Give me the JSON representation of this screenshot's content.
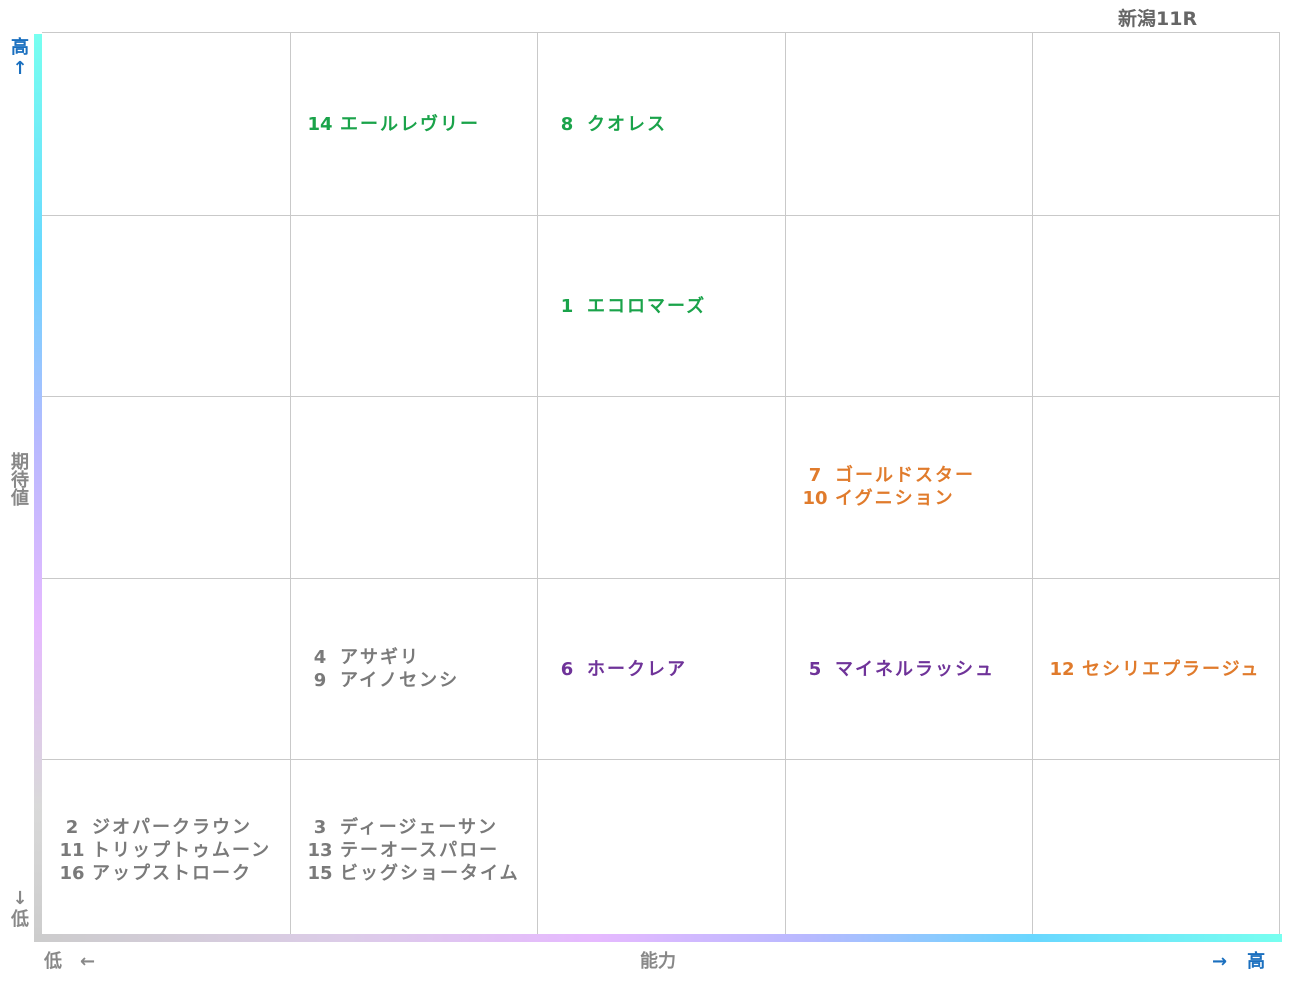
{
  "chart_data": {
    "type": "table",
    "title": "新潟11R",
    "y_axis": {
      "top": "高",
      "top_arrow": "↑",
      "label": "期待値",
      "bottom_arrow": "↓",
      "bottom": "低"
    },
    "x_axis": {
      "low": "低",
      "low_arrow": "←",
      "label": "能力",
      "high_arrow": "→",
      "high": "高"
    },
    "grid": {
      "columns": 5,
      "rows": 5
    },
    "colors": {
      "green": "#1aa34a",
      "orange": "#e07b2c",
      "purple": "#6f3399",
      "gray": "#7a7a7a",
      "axis_text": "#1a6fbf"
    },
    "cells": [
      {
        "row": 0,
        "col": 1,
        "color": "#1aa34a",
        "entries": [
          {
            "num": "14",
            "name": "エールレヴリー"
          }
        ]
      },
      {
        "row": 0,
        "col": 2,
        "color": "#1aa34a",
        "entries": [
          {
            "num": "8",
            "name": "クオレス"
          }
        ]
      },
      {
        "row": 1,
        "col": 2,
        "color": "#1aa34a",
        "entries": [
          {
            "num": "1",
            "name": "エコロマーズ"
          }
        ]
      },
      {
        "row": 2,
        "col": 3,
        "color": "#e07b2c",
        "entries": [
          {
            "num": "7",
            "name": "ゴールドスター"
          },
          {
            "num": "10",
            "name": "イグニション"
          }
        ]
      },
      {
        "row": 3,
        "col": 1,
        "color": "#7a7a7a",
        "entries": [
          {
            "num": "4",
            "name": "アサギリ"
          },
          {
            "num": "9",
            "name": "アイノセンシ"
          }
        ]
      },
      {
        "row": 3,
        "col": 2,
        "color": "#6f3399",
        "entries": [
          {
            "num": "6",
            "name": "ホークレア"
          }
        ]
      },
      {
        "row": 3,
        "col": 3,
        "color": "#6f3399",
        "entries": [
          {
            "num": "5",
            "name": "マイネルラッシュ"
          }
        ]
      },
      {
        "row": 3,
        "col": 4,
        "color": "#e07b2c",
        "entries": [
          {
            "num": "12",
            "name": "セシリエプラージュ"
          }
        ]
      },
      {
        "row": 4,
        "col": 0,
        "color": "#7a7a7a",
        "entries": [
          {
            "num": "2",
            "name": "ジオパークラウン"
          },
          {
            "num": "11",
            "name": "トリップトゥムーン"
          },
          {
            "num": "16",
            "name": "アップストローク"
          }
        ]
      },
      {
        "row": 4,
        "col": 1,
        "color": "#7a7a7a",
        "entries": [
          {
            "num": "3",
            "name": "ディージェーサン"
          },
          {
            "num": "13",
            "name": "テーオースパロー"
          },
          {
            "num": "15",
            "name": "ビッグショータイム"
          }
        ]
      }
    ]
  }
}
